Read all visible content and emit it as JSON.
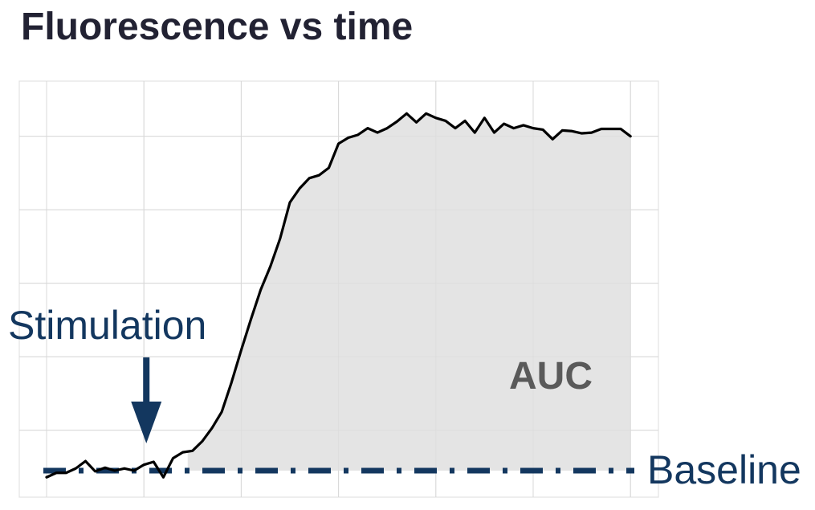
{
  "chart_data": {
    "type": "line",
    "title": "Fluorescence vs time",
    "xlabel": "",
    "ylabel": "",
    "grid": true,
    "xlim": [
      0,
      126
    ],
    "ylim": [
      -0.6,
      5.0
    ],
    "x": [
      0,
      2,
      4,
      6,
      8,
      10,
      12,
      14,
      16,
      18,
      20,
      22,
      24,
      26,
      28,
      30,
      32,
      34,
      36,
      38,
      40,
      42,
      44,
      46,
      48,
      50,
      52,
      54,
      56,
      58,
      60,
      62,
      64,
      66,
      68,
      70,
      72,
      74,
      76,
      78,
      80,
      82,
      84,
      86,
      88,
      90,
      92,
      94,
      96,
      98,
      100,
      102,
      104,
      106,
      108,
      110,
      112,
      114,
      116,
      118,
      120
    ],
    "series": [
      {
        "values": [
          -0.09,
          -0.03,
          -0.03,
          0.03,
          0.13,
          -0.01,
          0.04,
          0.0,
          0.03,
          0.0,
          0.08,
          0.12,
          -0.09,
          0.17,
          0.25,
          0.27,
          0.4,
          0.58,
          0.8,
          1.2,
          1.64,
          2.06,
          2.46,
          2.78,
          3.16,
          3.65,
          3.84,
          3.98,
          4.02,
          4.12,
          4.45,
          4.53,
          4.57,
          4.66,
          4.6,
          4.66,
          4.75,
          4.86,
          4.74,
          4.86,
          4.8,
          4.76,
          4.66,
          4.76,
          4.6,
          4.8,
          4.6,
          4.72,
          4.66,
          4.7,
          4.66,
          4.64,
          4.51,
          4.63,
          4.62,
          4.59,
          4.6,
          4.65,
          4.65,
          4.65,
          4.55
        ],
        "color": "#000000"
      }
    ],
    "shaded_area": {
      "label": "AUC",
      "x_from": 29,
      "x_to": 120,
      "color": "#e4e4e4"
    },
    "baseline": {
      "label": "Baseline",
      "y": 0,
      "style": "dash-dot",
      "color": "#13375f"
    },
    "stimulation": {
      "label": "Stimulation",
      "x": 20.5,
      "color": "#13375f"
    },
    "colors": {
      "text_accent": "#13375f",
      "auc_label": "#5a5a5a",
      "grid": "#d8d8d8",
      "title": "#222233"
    }
  }
}
